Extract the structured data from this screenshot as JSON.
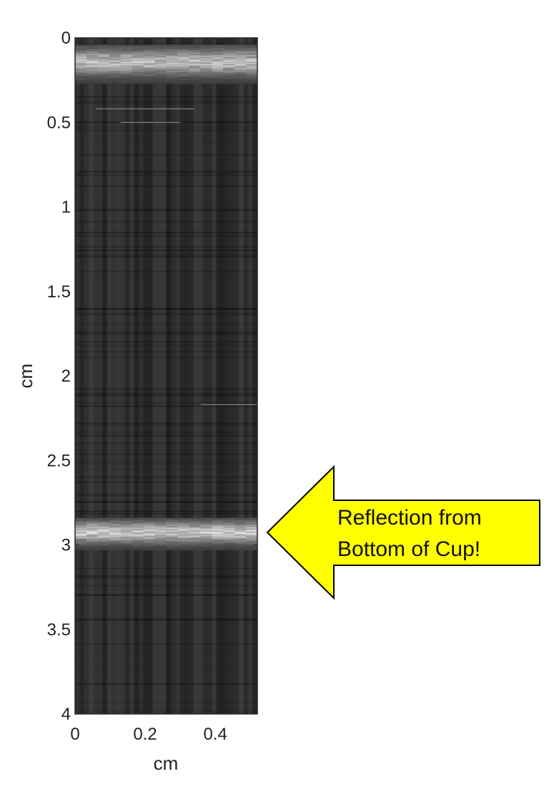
{
  "chart_data": {
    "type": "heatmap",
    "colormap": "gray",
    "title": "",
    "xlabel": "cm",
    "ylabel": "cm",
    "xlim": [
      0,
      0.52
    ],
    "ylim": [
      0,
      4
    ],
    "y_reversed": true,
    "xticks": [
      "0",
      "0.2",
      "0.4"
    ],
    "xtick_values": [
      0,
      0.2,
      0.4
    ],
    "yticks": [
      "0",
      "0.5",
      "1",
      "1.5",
      "2",
      "2.5",
      "3",
      "3.5",
      "4"
    ],
    "ytick_values": [
      0,
      0.5,
      1,
      1.5,
      2,
      2.5,
      3,
      3.5,
      4
    ],
    "grid": false,
    "bright_bands": [
      {
        "y_start": 0.04,
        "y_end": 0.27,
        "intensity": 0.82
      },
      {
        "y_start": 2.84,
        "y_end": 3.03,
        "intensity": 0.9
      }
    ],
    "faint_lines": [
      {
        "y": 0.42,
        "x_start": 0.06,
        "x_end": 0.34
      },
      {
        "y": 0.5,
        "x_start": 0.13,
        "x_end": 0.3
      },
      {
        "y": 2.17,
        "x_start": 0.36,
        "x_end": 0.52
      }
    ],
    "annotation": {
      "text_lines": [
        "Reflection from",
        "Bottom of Cup!"
      ],
      "points_to_y": 2.95,
      "fill": "#ffff00",
      "stroke": "#000000"
    }
  }
}
